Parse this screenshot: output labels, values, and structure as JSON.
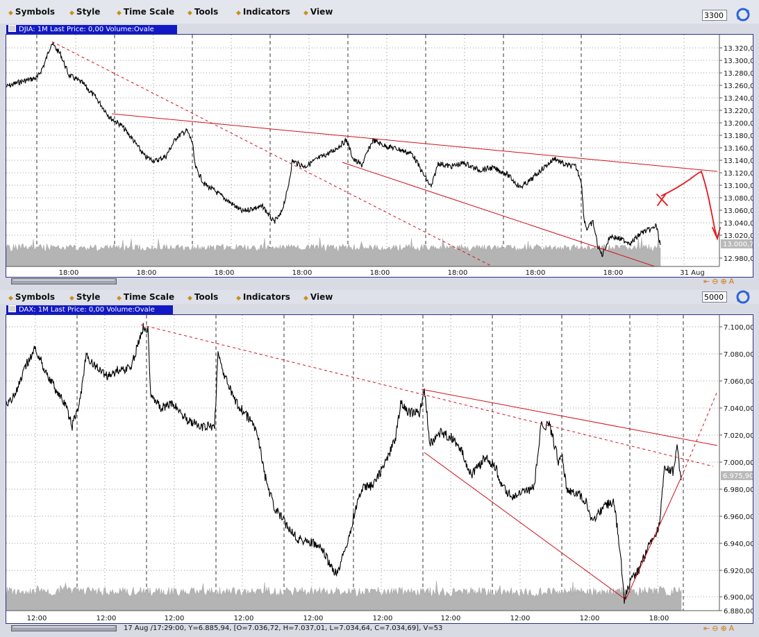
{
  "menu": {
    "items": [
      "Symbols",
      "Style",
      "Time Scale",
      "Tools",
      "Indicators",
      "View"
    ]
  },
  "top": {
    "interval_value": "3300",
    "title": "DJIA: 1M Last Price: 0,00 Volume:Ovale",
    "price_labels": [
      "13.320,00",
      "13.300,00",
      "13.280,00",
      "13.260,00",
      "13.240,00",
      "13.220,00",
      "13.200,00",
      "13.180,00",
      "13.160,00",
      "13.140,00",
      "13.120,00",
      "13.100,00",
      "13.080,00",
      "13.060,00",
      "13.040,00",
      "13.020,00",
      "12.980,00"
    ],
    "last_price": "13.000,7",
    "time_labels": [
      "18:00",
      "18:00",
      "18:00",
      "18:00",
      "18:00",
      "18:00",
      "18:00",
      "18:00",
      "31 Aug"
    ]
  },
  "bottom": {
    "interval_value": "5000",
    "title": "DAX: 1M Last Price: 0,00 Volume:Ovale",
    "price_labels": [
      "7.100,00",
      "7.080,00",
      "7.060,00",
      "7.040,00",
      "7.020,00",
      "7.000,00",
      "6.980,00",
      "6.960,00",
      "6.940,00",
      "6.920,00",
      "6.900,00",
      "6.880,00"
    ],
    "last_price": "6.975,90",
    "time_labels": [
      "12:00",
      "12:00",
      "12:00",
      "12:00",
      "12:00",
      "12:00",
      "12:00",
      "12:00",
      "12:00",
      "18:00"
    ],
    "status": "17 Aug /17:29:00, Y=6.885,94, [O=7.036,72, H=7.037,01, L=7.034,64, C=7.034,69], V=53"
  },
  "colors": {
    "title_bar": "#1219c4",
    "price_line": "#000000",
    "trend_line": "#d0101a",
    "volume": "#b4b4b4"
  }
}
